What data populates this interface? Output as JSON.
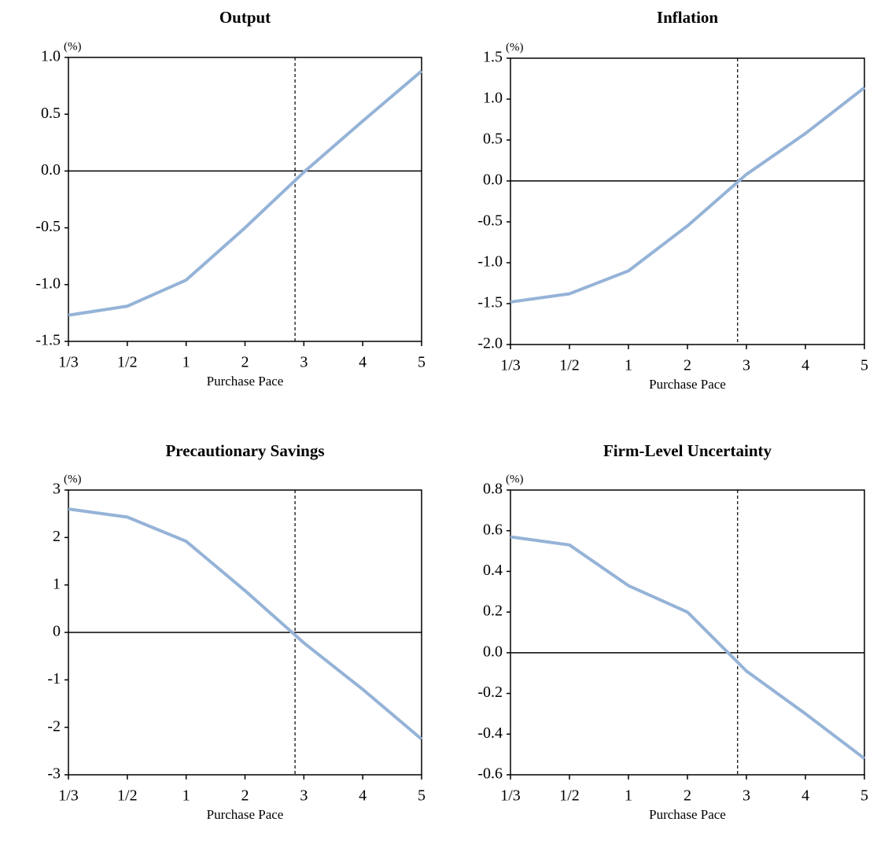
{
  "chart_data": [
    {
      "type": "line",
      "title": "Output",
      "y_label": "(%)",
      "x_label": "Purchase Pace",
      "categories": [
        "1/3",
        "1/2",
        "1",
        "2",
        "3",
        "4",
        "5"
      ],
      "series": [
        {
          "color": "#95b3d7",
          "values": [
            -1.27,
            -1.19,
            -0.96,
            -0.5,
            -0.01,
            0.44,
            0.88
          ]
        }
      ],
      "ylim": [
        -1.5,
        1.0
      ],
      "yticks": [
        {
          "value": -1.5,
          "label": "-1.5"
        },
        {
          "value": -1.0,
          "label": "-1.0"
        },
        -0.5,
        {
          "value": 0,
          "label": "0.0"
        },
        0.5,
        {
          "value": 1.0,
          "label": "1.0"
        }
      ],
      "zero_line": true,
      "reference_line": {
        "x": 3.85,
        "style": "dashed"
      }
    },
    {
      "type": "line",
      "title": "Inflation",
      "y_label": "(%)",
      "x_label": "Purchase Pace",
      "categories": [
        "1/3",
        "1/2",
        "1",
        "2",
        "3",
        "4",
        "5"
      ],
      "series": [
        {
          "color": "#95b3d7",
          "values": [
            -1.48,
            -1.38,
            -1.1,
            -0.55,
            0.08,
            0.58,
            1.14
          ]
        }
      ],
      "ylim": [
        -2.0,
        1.5
      ],
      "yticks": [
        {
          "value": -2.0,
          "label": "-2.0"
        },
        -1.5,
        {
          "value": -1.0,
          "label": "-1.0"
        },
        -0.5,
        {
          "value": 0,
          "label": "0.0"
        },
        0.5,
        {
          "value": 1.0,
          "label": "1.0"
        },
        1.5
      ],
      "zero_line": true,
      "reference_line": {
        "x": 3.85,
        "style": "dashed"
      }
    },
    {
      "type": "line",
      "title": "Precautionary Savings",
      "y_label": "(%)",
      "x_label": "Purchase Pace",
      "categories": [
        "1/3",
        "1/2",
        "1",
        "2",
        "3",
        "4",
        "5"
      ],
      "series": [
        {
          "color": "#95b3d7",
          "values": [
            2.6,
            2.43,
            1.92,
            0.88,
            -0.22,
            -1.2,
            -2.25
          ]
        }
      ],
      "ylim": [
        -3,
        3
      ],
      "yticks": [
        -3,
        -2,
        -1,
        0,
        1,
        2,
        3
      ],
      "zero_line": true,
      "reference_line": {
        "x": 3.85,
        "style": "dashed"
      }
    },
    {
      "type": "line",
      "title": "Firm-Level Uncertainty",
      "y_label": "(%)",
      "x_label": "Purchase Pace",
      "categories": [
        "1/3",
        "1/2",
        "1",
        "2",
        "3",
        "4",
        "5"
      ],
      "series": [
        {
          "color": "#95b3d7",
          "values": [
            0.57,
            0.53,
            0.33,
            0.2,
            -0.09,
            -0.3,
            -0.52
          ]
        }
      ],
      "ylim": [
        -0.6,
        0.8
      ],
      "yticks": [
        -0.6,
        -0.4,
        -0.2,
        {
          "value": 0,
          "label": "0.0"
        },
        0.2,
        0.4,
        0.6,
        0.8
      ],
      "zero_line": true,
      "reference_line": {
        "x": 3.85,
        "style": "dashed"
      }
    }
  ]
}
